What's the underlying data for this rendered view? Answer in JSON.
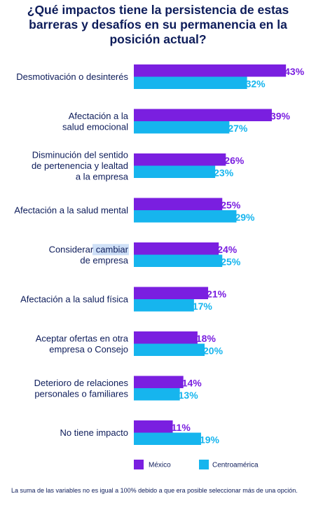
{
  "title": "¿Qué impactos tiene la persistencia de estas barreras y desafíos en su permanencia en la posición actual?",
  "footnote": "La suma de las variables no es igual a 100% debido a que era posible seleccionar más de una opción.",
  "colors": {
    "mexico": "#7a1fe0",
    "centroamerica": "#16b5ee",
    "text": "#0d1c5a"
  },
  "chart_data": {
    "type": "bar",
    "orientation": "horizontal",
    "categories": [
      "Desmotivación o desinterés",
      "Afectación a la\nsalud emocional",
      "Disminución del sentido\nde pertenencia y lealtad\na la empresa",
      "Afectación a la salud mental",
      "Considerar cambiar\nde empresa",
      "Afectación a la salud física",
      "Aceptar ofertas en otra\nempresa o Consejo",
      "Deterioro de relaciones\npersonales o familiares",
      "No tiene impacto"
    ],
    "series": [
      {
        "name": "México",
        "values": [
          43,
          39,
          26,
          25,
          24,
          21,
          18,
          14,
          11
        ]
      },
      {
        "name": "Centroamérica",
        "values": [
          32,
          27,
          23,
          29,
          25,
          17,
          20,
          13,
          19
        ]
      }
    ],
    "value_suffix": "%",
    "xlim": [
      0,
      46
    ],
    "legend": "bottom-left",
    "grid": false
  }
}
